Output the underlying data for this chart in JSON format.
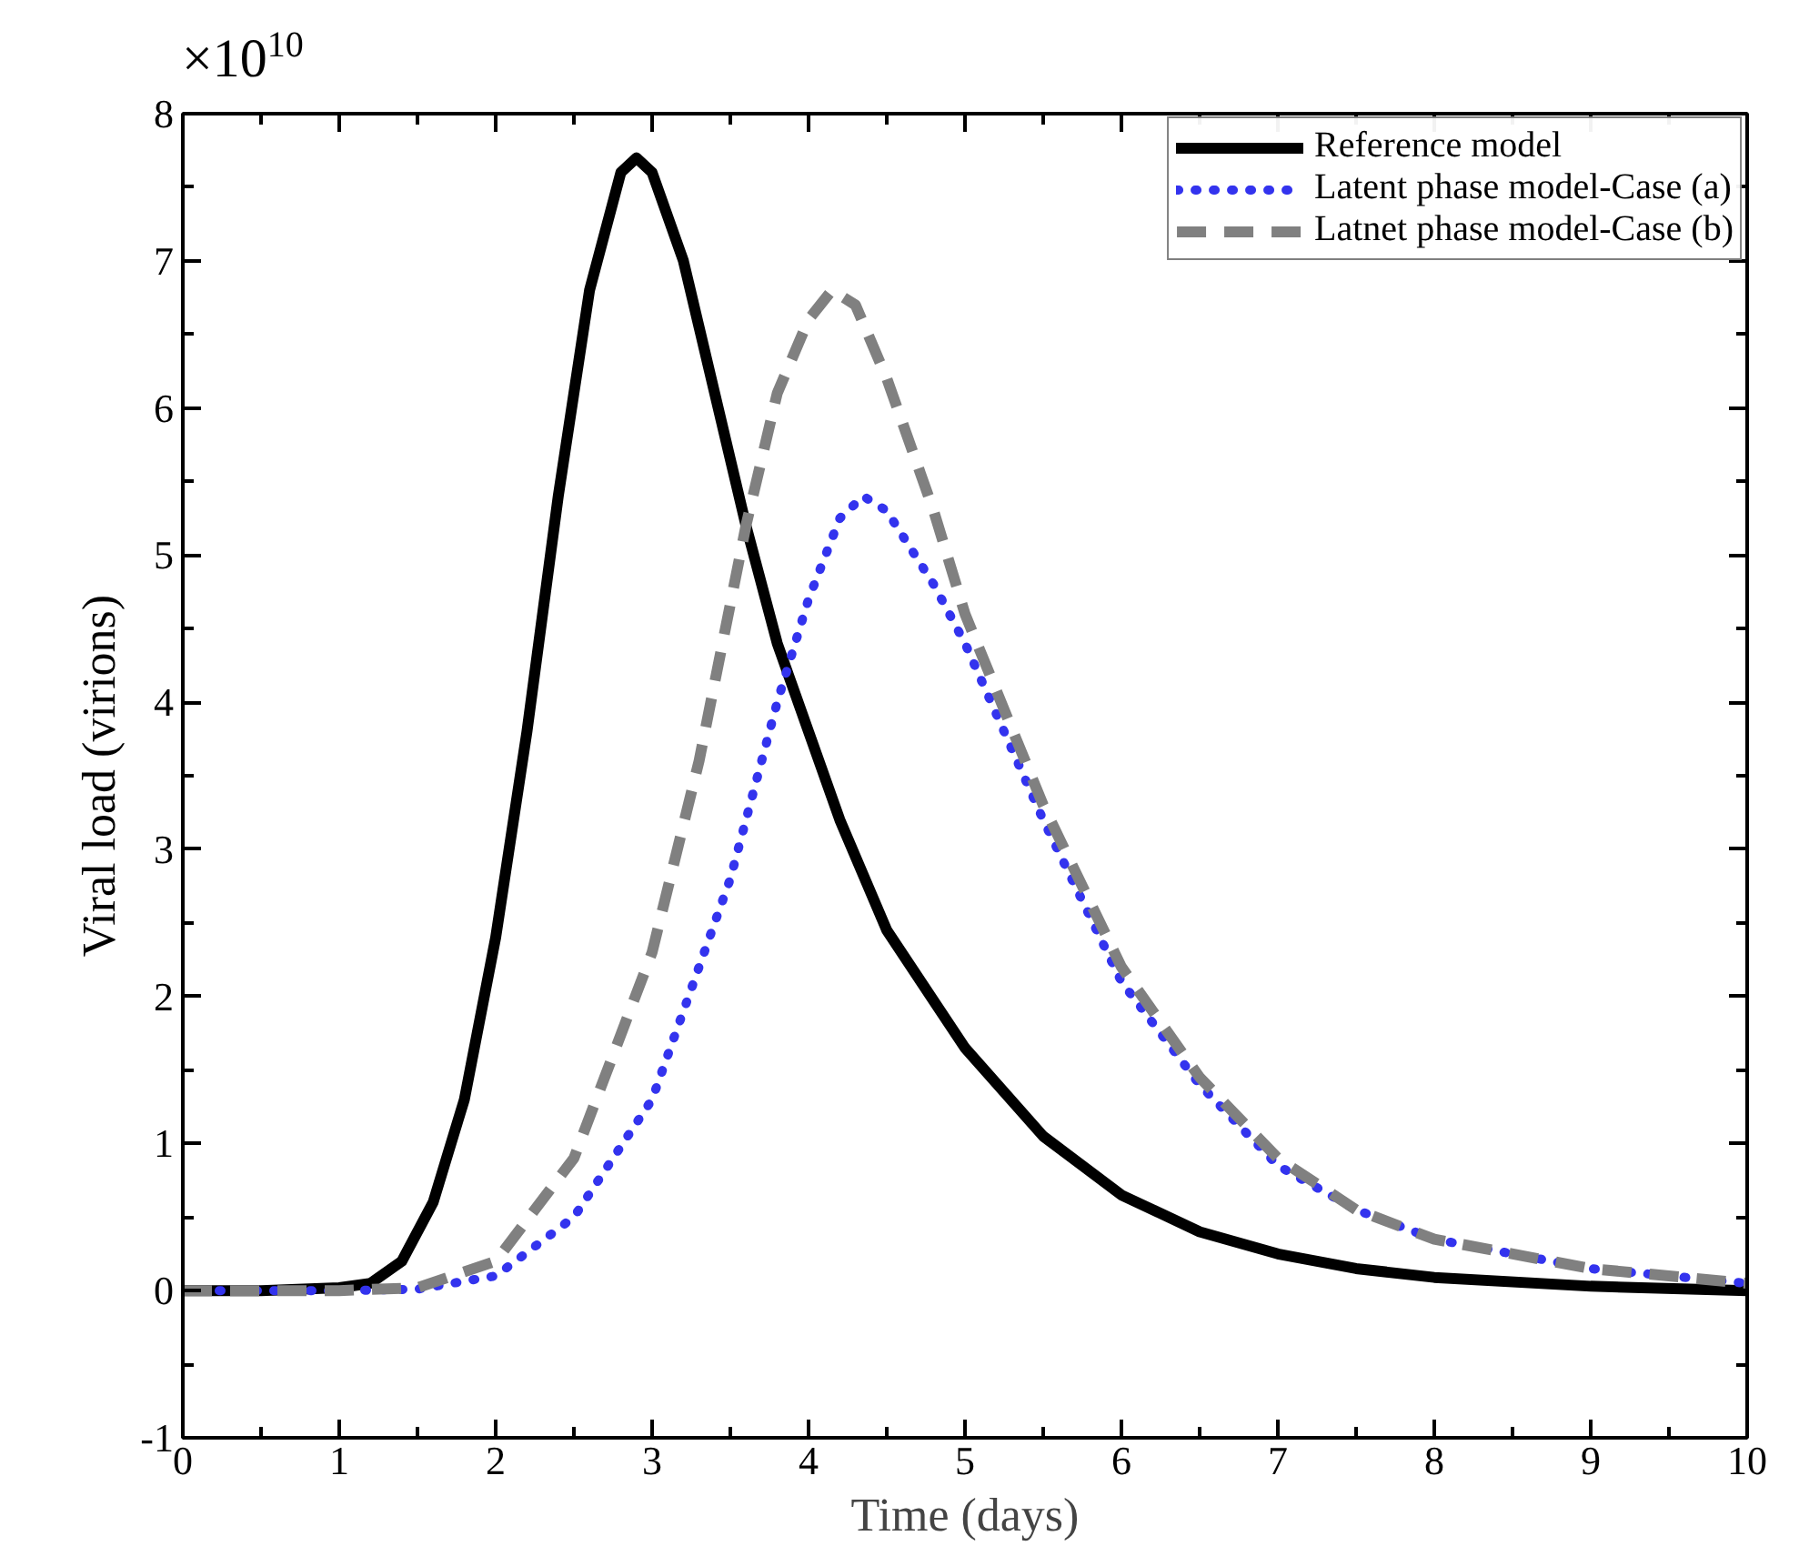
{
  "chart_data": {
    "type": "line",
    "xlabel": "Time (days)",
    "ylabel": "Viral load (virions)",
    "annotations": [
      "×10$^{10}$"
    ],
    "xlim": [
      0,
      10
    ],
    "ylim": [
      -1,
      8
    ],
    "xticks": [
      0,
      1,
      2,
      3,
      4,
      5,
      6,
      7,
      8,
      9,
      10
    ],
    "yticks": [
      -1,
      0,
      1,
      2,
      3,
      4,
      5,
      6,
      7,
      8
    ],
    "grid": false,
    "legend": "top right",
    "series": [
      {
        "name": "Reference model",
        "color": "#000000",
        "line_style": "solid",
        "x": [
          0,
          0.5,
          1,
          1.2,
          1.4,
          1.6,
          1.8,
          2.0,
          2.2,
          2.4,
          2.6,
          2.8,
          2.9,
          3.0,
          3.2,
          3.4,
          3.6,
          3.8,
          4.0,
          4.2,
          4.5,
          5.0,
          5.5,
          6.0,
          6.5,
          7.0,
          7.5,
          8,
          9,
          10
        ],
        "values": [
          0,
          0,
          0.02,
          0.05,
          0.2,
          0.6,
          1.3,
          2.4,
          3.8,
          5.4,
          6.8,
          7.6,
          7.7,
          7.6,
          7.0,
          6.1,
          5.2,
          4.4,
          3.8,
          3.2,
          2.45,
          1.65,
          1.05,
          0.65,
          0.4,
          0.25,
          0.15,
          0.09,
          0.03,
          0
        ]
      },
      {
        "name": "Latent phase model-Case (a)",
        "color": "#3333ee",
        "line_style": "dotted",
        "x": [
          0,
          1,
          1.5,
          2.0,
          2.5,
          3.0,
          3.5,
          3.8,
          4.0,
          4.2,
          4.35,
          4.5,
          4.8,
          5.0,
          5.5,
          6.0,
          6.5,
          7.0,
          7.5,
          8,
          9,
          10
        ],
        "values": [
          0,
          0,
          0.01,
          0.1,
          0.5,
          1.3,
          2.8,
          4.0,
          4.7,
          5.25,
          5.4,
          5.3,
          4.8,
          4.4,
          3.2,
          2.1,
          1.4,
          0.85,
          0.55,
          0.35,
          0.15,
          0.05
        ]
      },
      {
        "name": "Latnet phase model-Case (b)",
        "color": "#808080",
        "line_style": "dashed",
        "x": [
          0,
          1,
          1.5,
          2.0,
          2.5,
          3.0,
          3.3,
          3.6,
          3.8,
          4.0,
          4.15,
          4.3,
          4.5,
          4.8,
          5.0,
          5.5,
          6.0,
          6.5,
          7.0,
          7.5,
          8,
          9,
          10
        ],
        "values": [
          0,
          0,
          0.02,
          0.2,
          0.9,
          2.3,
          3.6,
          5.2,
          6.1,
          6.6,
          6.8,
          6.7,
          6.2,
          5.3,
          4.6,
          3.3,
          2.2,
          1.45,
          0.9,
          0.55,
          0.35,
          0.15,
          0.05
        ]
      }
    ]
  }
}
